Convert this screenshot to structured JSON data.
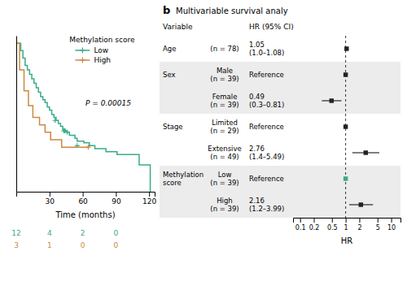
{
  "chart_data": [
    {
      "type": "step",
      "xlabel": "Time (months)",
      "legend_title": "Methylation score",
      "legend": "top",
      "pvalue": "P = 0.00015",
      "xlim": [
        0,
        125
      ],
      "ylim": [
        0,
        1.05
      ],
      "xticks": [
        30,
        60,
        90,
        120
      ],
      "yticks": [],
      "tick_labels": "x",
      "at_risk_times": [
        0,
        30,
        60,
        90
      ],
      "series": [
        {
          "name": "Low",
          "color": "#3aaa8a",
          "marker": "+",
          "x": [
            0,
            3,
            4,
            5,
            6,
            7,
            8,
            9,
            10,
            11,
            12,
            13,
            14,
            15,
            16,
            17,
            18,
            19,
            20,
            21,
            22,
            23,
            24,
            25,
            26,
            27,
            28,
            29,
            30,
            31,
            32,
            33,
            34,
            35,
            36,
            37,
            38,
            39,
            40,
            41,
            42,
            43,
            44,
            45,
            46,
            47,
            48,
            52,
            53,
            54,
            55,
            60,
            61,
            65,
            66,
            70,
            71,
            80,
            81,
            90,
            91,
            110,
            111,
            120,
            121
          ],
          "values": [
            1.0,
            1.0,
            0.95,
            0.95,
            0.9,
            0.9,
            0.85,
            0.85,
            0.82,
            0.82,
            0.79,
            0.79,
            0.76,
            0.76,
            0.73,
            0.73,
            0.7,
            0.7,
            0.67,
            0.67,
            0.64,
            0.64,
            0.62,
            0.62,
            0.6,
            0.6,
            0.57,
            0.57,
            0.55,
            0.55,
            0.52,
            0.52,
            0.5,
            0.5,
            0.48,
            0.48,
            0.46,
            0.46,
            0.44,
            0.44,
            0.42,
            0.42,
            0.41,
            0.41,
            0.4,
            0.4,
            0.38,
            0.38,
            0.36,
            0.36,
            0.34,
            0.34,
            0.33,
            0.33,
            0.31,
            0.31,
            0.29,
            0.29,
            0.27,
            0.27,
            0.25,
            0.25,
            0.18,
            0.18,
            0.0
          ],
          "censors_x": [
            35,
            43,
            44,
            46,
            55
          ],
          "censors_y": [
            0.48,
            0.41,
            0.41,
            0.4,
            0.31
          ],
          "at_risk": [
            12,
            4,
            2,
            0
          ]
        },
        {
          "name": "High",
          "color": "#cc8844",
          "marker": "+",
          "x": [
            0,
            2,
            3,
            6,
            7,
            10,
            11,
            14,
            15,
            20,
            21,
            25,
            26,
            30,
            31,
            40,
            41,
            65,
            66
          ],
          "values": [
            1.0,
            1.0,
            0.82,
            0.82,
            0.68,
            0.68,
            0.58,
            0.58,
            0.5,
            0.5,
            0.45,
            0.45,
            0.4,
            0.4,
            0.35,
            0.35,
            0.3,
            0.3,
            0.3
          ],
          "censors_x": [
            65
          ],
          "censors_y": [
            0.3
          ],
          "at_risk": [
            3,
            1,
            0,
            0
          ]
        }
      ]
    },
    {
      "type": "forest",
      "title": "Multivariable survival analy",
      "panel_label": "b",
      "column_headers": [
        "Variable",
        "HR (95% CI)"
      ],
      "xlabel": "HR",
      "log": "x",
      "xlim": [
        0.07,
        16
      ],
      "xticks": [
        0.1,
        0.2,
        0.5,
        1,
        2,
        5,
        10
      ],
      "ref_line": 1,
      "variables": [
        "Age",
        "Sex",
        null,
        "Stage",
        null,
        "Methylation\nscore",
        null
      ],
      "categories": [
        "(n = 78)",
        "Male\n(n = 39)",
        "Female\n(n = 39)",
        "Limited\n(n = 29)",
        "Extensive\n(n = 49)",
        "Low\n(n = 39)",
        "High\n(n = 39)"
      ],
      "values": [
        1.05,
        1,
        0.49,
        1,
        2.76,
        1,
        2.16
      ],
      "value_labels": [
        "1.05\n(1.0–1.08)",
        "Reference",
        "0.49\n(0.3–0.81)",
        "Reference",
        "2.76\n(1.4–5.49)",
        "Reference",
        "2.16\n(1.2–3.99)"
      ],
      "ci_lo": [
        1.0,
        null,
        0.3,
        null,
        1.4,
        null,
        1.2
      ],
      "ci_hi": [
        1.08,
        null,
        0.81,
        null,
        5.49,
        null,
        3.99
      ],
      "colors": [
        "#222222",
        "#222222",
        "#222222",
        "#222222",
        "#222222",
        "#3aaa8a",
        "#222222"
      ]
    }
  ]
}
